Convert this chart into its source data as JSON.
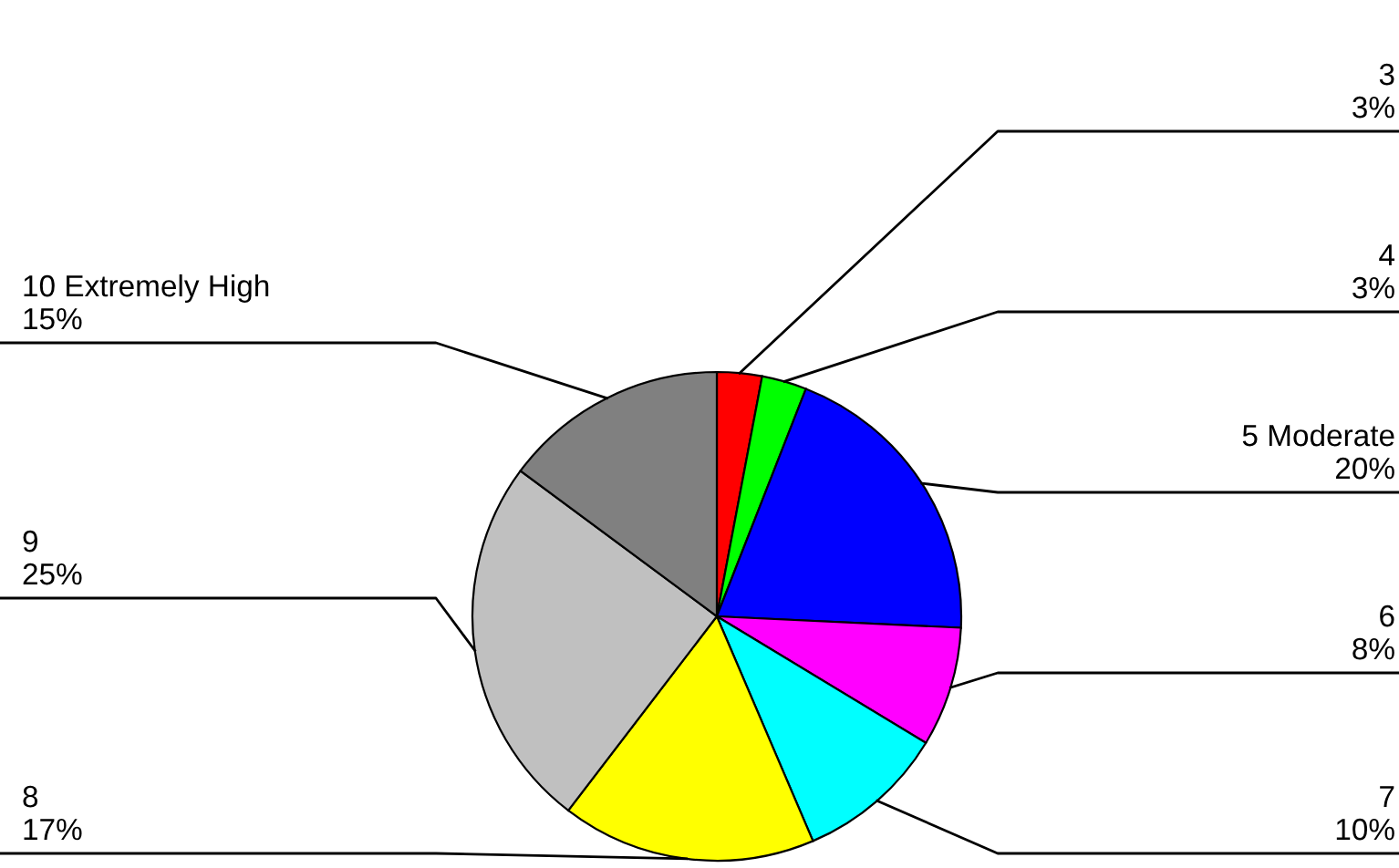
{
  "chart_data": {
    "type": "pie",
    "categories": [
      "3",
      "4",
      "5 Moderate",
      "6",
      "7",
      "8",
      "9",
      "10 Extremely High"
    ],
    "values": [
      3,
      3,
      20,
      8,
      10,
      17,
      25,
      15
    ],
    "value_labels": [
      "3%",
      "3%",
      "20%",
      "8%",
      "10%",
      "17%",
      "25%",
      "15%"
    ],
    "colors": [
      "#ff0000",
      "#00ff00",
      "#0000ff",
      "#ff00ff",
      "#00ffff",
      "#ffff00",
      "#c0c0c0",
      "#808080"
    ],
    "legend": false
  }
}
